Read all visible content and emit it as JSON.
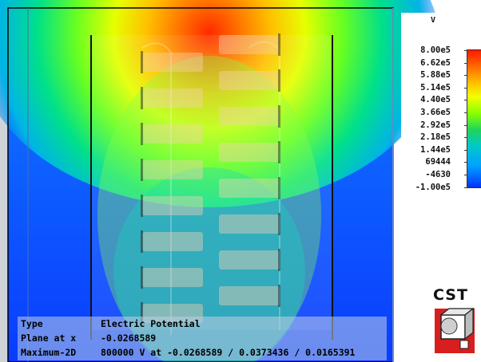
{
  "legend": {
    "unit": "V",
    "labels": [
      "8.00e5",
      "6.62e5",
      "5.88e5",
      "5.14e5",
      "4.40e5",
      "3.66e5",
      "2.92e5",
      "2.18e5",
      "1.44e5",
      "69444",
      "-4630",
      "-1.00e5"
    ]
  },
  "info": {
    "rows": [
      {
        "label": "Type",
        "value": "Electric Potential"
      },
      {
        "label": "Plane at x",
        "value": "-0.0268589"
      },
      {
        "label": "Maximum-2D",
        "value": "800000 V at -0.0268589 / 0.0373436 / 0.0165391"
      }
    ]
  },
  "logo": {
    "text": "CST"
  },
  "colors": {
    "background_field": "#0f3fff",
    "max_potential": "#ff1a00",
    "min_potential": "#0033ff",
    "frame": "#000000",
    "info_box": "#becde4"
  }
}
